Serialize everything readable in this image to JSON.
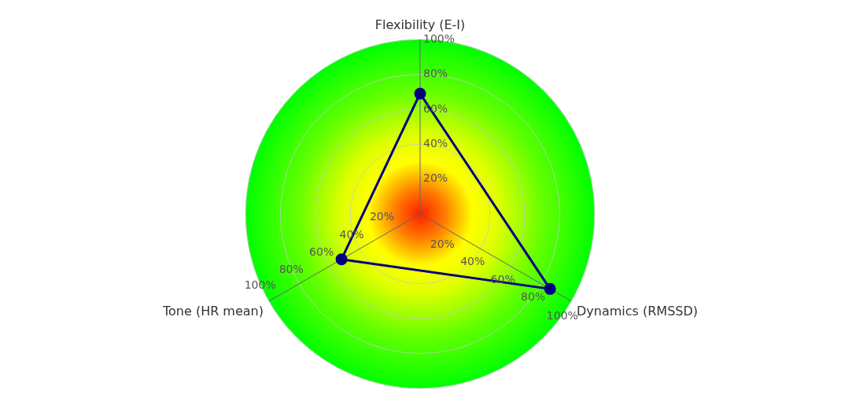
{
  "chart_data": {
    "type": "radar",
    "categories": [
      "Flexibility (E-I)",
      "Dynamics (RMSSD)",
      "Tone (HR mean)"
    ],
    "series": [
      {
        "color": "#00007f",
        "values": [
          69,
          86,
          52
        ]
      }
    ],
    "ylim": [
      0,
      100
    ],
    "yticks": [
      {
        "value": 20,
        "label": "20%"
      },
      {
        "value": 40,
        "label": "40%"
      },
      {
        "value": 60,
        "label": "60%"
      },
      {
        "value": 80,
        "label": "80%"
      },
      {
        "value": 100,
        "label": "100%"
      }
    ],
    "grid": true,
    "legend": false,
    "marker": "circle",
    "line_style": "solid"
  }
}
